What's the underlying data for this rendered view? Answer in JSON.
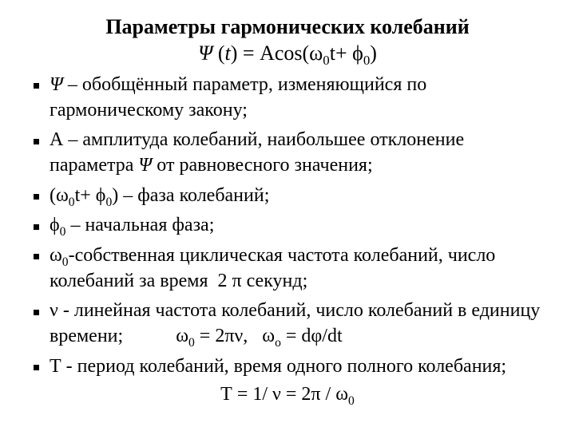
{
  "title": "Параметры гармонических колебаний",
  "main_equation": "Ψ (t) = Acos(ω0t+ ϕ0)",
  "items": {
    "i0": "Ψ – обобщённый параметр, изменяющийся по гармоническому закону;",
    "i1": "А – амплитуда колебаний, наибольшее отклонение параметра Ψ от равновесного значения;",
    "i2": "(ω0t+ ϕ0) – фаза колебаний;",
    "i3": "ϕ0 – начальная фаза;",
    "i4": "ω0-собственная циклическая частота колебаний, число колебаний за время  2 π секунд;",
    "i5_main": "ν - линейная частота колебаний, число колебаний в единицу времени;",
    "i5_eq": "ω0 = 2πν,   ωо = dφ/dt",
    "i6": "Т - период колебаний, время одного полного колебания;"
  },
  "final_equation": "Т = 1/ ν = 2π / ω0",
  "style": {
    "background_color": "#ffffff",
    "text_color": "#000000",
    "font_family": "Times New Roman",
    "title_fontsize": 26,
    "body_fontsize": 24,
    "bullet_shape": "square",
    "bullet_color": "#000000",
    "slide_width": 720,
    "slide_height": 540
  }
}
